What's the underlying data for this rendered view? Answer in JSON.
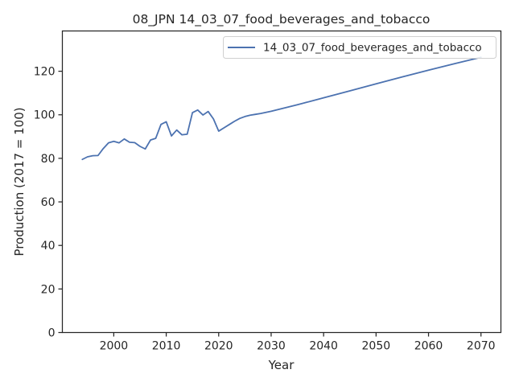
{
  "chart_data": {
    "type": "line",
    "title": "08_JPN 14_03_07_food_beverages_and_tobacco",
    "xlabel": "Year",
    "ylabel": "Production (2017 = 100)",
    "xlim": [
      1990.2,
      2073.8
    ],
    "ylim": [
      0,
      138.5
    ],
    "xticks": [
      2000,
      2010,
      2020,
      2030,
      2040,
      2050,
      2060,
      2070
    ],
    "yticks": [
      0,
      20,
      40,
      60,
      80,
      100,
      120
    ],
    "grid": false,
    "legend_position": "top-right",
    "series": [
      {
        "name": "14_03_07_food_beverages_and_tobacco",
        "color": "#4c72b0",
        "x": [
          1994,
          1995,
          1996,
          1997,
          1998,
          1999,
          2000,
          2001,
          2002,
          2003,
          2004,
          2005,
          2006,
          2007,
          2008,
          2009,
          2010,
          2011,
          2012,
          2013,
          2014,
          2015,
          2016,
          2017,
          2018,
          2019,
          2020,
          2021,
          2022,
          2023,
          2024,
          2025,
          2026,
          2027,
          2028,
          2029,
          2030,
          2035,
          2040,
          2045,
          2050,
          2055,
          2060,
          2065,
          2070
        ],
        "y": [
          79.5,
          80.7,
          81.2,
          81.3,
          84.5,
          87.1,
          87.8,
          87.1,
          88.9,
          87.4,
          87.2,
          85.5,
          84.3,
          88.4,
          89.2,
          95.6,
          96.8,
          90.3,
          93.0,
          90.8,
          91.1,
          101.0,
          102.2,
          99.9,
          101.5,
          98.1,
          92.5,
          94.0,
          95.5,
          97.0,
          98.3,
          99.2,
          99.8,
          100.2,
          100.6,
          101.1,
          101.6,
          104.6,
          107.8,
          111.0,
          114.2,
          117.4,
          120.5,
          123.5,
          126.4
        ]
      }
    ]
  }
}
